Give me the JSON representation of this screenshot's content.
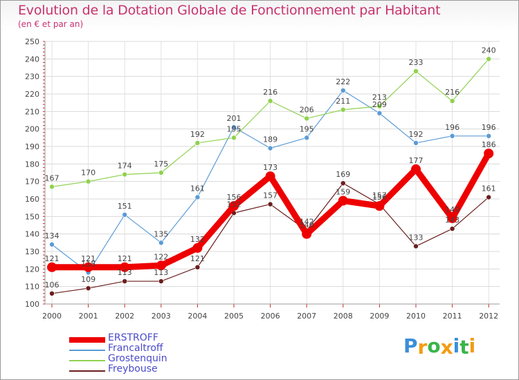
{
  "chart_data": {
    "type": "line",
    "title": "Evolution de la Dotation Globale de Fonctionnement par Habitant",
    "subtitle": "(en € et par an)",
    "xlabel": "",
    "ylabel": "",
    "ylim": [
      100,
      250
    ],
    "yticks": [
      100,
      110,
      120,
      130,
      140,
      150,
      160,
      170,
      180,
      190,
      200,
      210,
      220,
      230,
      240,
      250
    ],
    "categories": [
      "2000",
      "2001",
      "2002",
      "2003",
      "2004",
      "2005",
      "2006",
      "2007",
      "2008",
      "2009",
      "2010",
      "2011",
      "2012"
    ],
    "grid": true,
    "legend_position": "bottom-left",
    "series": [
      {
        "name": "ERSTROFF",
        "color": "#ee0000",
        "values": [
          121,
          121,
          121,
          122,
          132,
          156,
          173,
          140,
          159,
          156,
          177,
          149,
          186
        ]
      },
      {
        "name": "Francaltroff",
        "color": "#5b9bd5",
        "values": [
          134,
          118,
          151,
          135,
          161,
          201,
          189,
          195,
          222,
          209,
          192,
          196,
          196
        ]
      },
      {
        "name": "Grostenquin",
        "color": "#8fd14f",
        "values": [
          167,
          170,
          174,
          175,
          192,
          195,
          216,
          206,
          211,
          213,
          233,
          216,
          240
        ]
      },
      {
        "name": "Freybouse",
        "color": "#6b1e1e",
        "values": [
          106,
          109,
          113,
          113,
          121,
          152,
          157,
          142,
          169,
          157,
          133,
          143,
          161
        ]
      }
    ]
  },
  "logo": {
    "letters": [
      "P",
      "r",
      "o",
      "x",
      "i",
      "t",
      "i"
    ],
    "colors": [
      "#3a8fd9",
      "#f39c12",
      "#3ab54a",
      "#f39c12",
      "#3a8fd9",
      "#3ab54a",
      "#f39c12"
    ]
  }
}
